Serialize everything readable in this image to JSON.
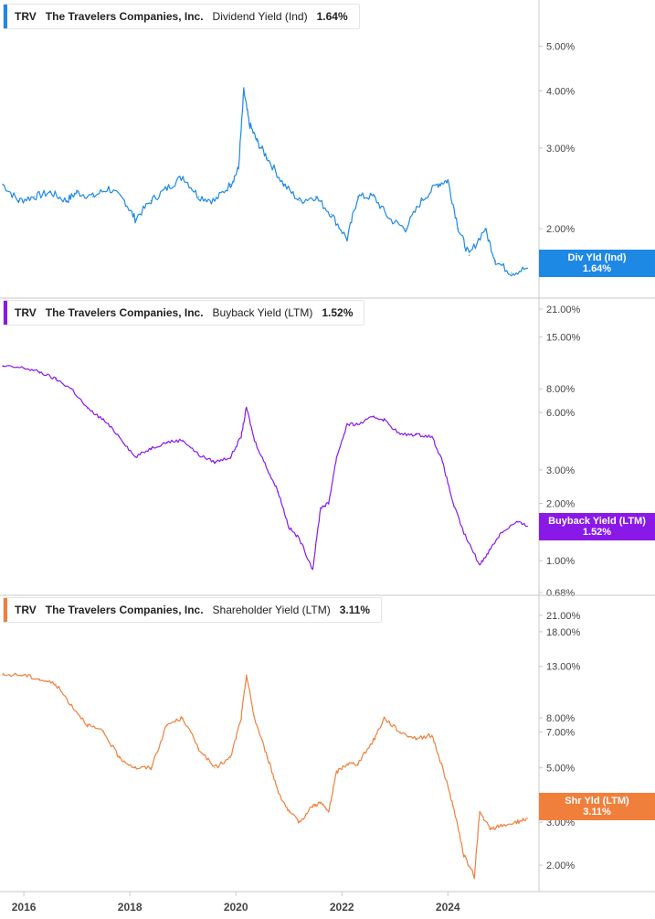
{
  "panels": [
    {
      "ticker": "TRV",
      "company": "The Travelers Companies, Inc.",
      "metric": "Dividend Yield (Ind)",
      "value": "1.64%",
      "badge_label": "Div Yld (Ind)",
      "badge_value": "1.64%",
      "color": "#1e88e5",
      "tick_labels": [
        "5.00%",
        "4.00%",
        "3.00%",
        "2.00%"
      ]
    },
    {
      "ticker": "TRV",
      "company": "The Travelers Companies, Inc.",
      "metric": "Buyback Yield (LTM)",
      "value": "1.52%",
      "badge_label": "Buyback Yield (LTM)",
      "badge_value": "1.52%",
      "color": "#8a19e8",
      "tick_labels": [
        "21.00%",
        "15.00%",
        "8.00%",
        "6.00%",
        "3.00%",
        "2.00%",
        "1.00%",
        "0.68%"
      ]
    },
    {
      "ticker": "TRV",
      "company": "The Travelers Companies, Inc.",
      "metric": "Shareholder Yield (LTM)",
      "value": "3.11%",
      "badge_label": "Shr Yld (LTM)",
      "badge_value": "3.11%",
      "color": "#f07f3c",
      "tick_labels": [
        "21.00%",
        "18.00%",
        "13.00%",
        "8.00%",
        "7.00%",
        "5.00%",
        "3.00%",
        "2.00%"
      ]
    }
  ],
  "x_axis": {
    "tick_labels": [
      "2016",
      "2018",
      "2020",
      "2022",
      "2024"
    ]
  },
  "chart_data": [
    {
      "type": "line",
      "y_scale": "log",
      "ylim": [
        1.45,
        5.5
      ],
      "y_ticks": [
        5,
        4,
        3,
        2
      ],
      "x_ticks": [
        2016,
        2018,
        2020,
        2022,
        2024
      ],
      "series": [
        {
          "name": "Div Yld (Ind)",
          "color": "#1e88e5",
          "x": [
            2015.6,
            2015.9,
            2016.2,
            2016.5,
            2016.8,
            2017.0,
            2017.3,
            2017.6,
            2017.9,
            2018.1,
            2018.4,
            2018.7,
            2019.0,
            2019.3,
            2019.6,
            2019.9,
            2020.05,
            2020.15,
            2020.25,
            2020.4,
            2020.6,
            2020.9,
            2021.2,
            2021.5,
            2021.8,
            2022.1,
            2022.3,
            2022.6,
            2022.9,
            2023.2,
            2023.5,
            2023.8,
            2024.0,
            2024.2,
            2024.4,
            2024.7,
            2024.9,
            2025.2,
            2025.5
          ],
          "y": [
            2.5,
            2.3,
            2.35,
            2.4,
            2.3,
            2.4,
            2.35,
            2.45,
            2.3,
            2.1,
            2.3,
            2.45,
            2.6,
            2.35,
            2.3,
            2.5,
            2.7,
            4.0,
            3.4,
            3.1,
            2.85,
            2.5,
            2.3,
            2.35,
            2.15,
            1.9,
            2.35,
            2.35,
            2.1,
            2.0,
            2.3,
            2.5,
            2.55,
            2.0,
            1.75,
            2.0,
            1.7,
            1.6,
            1.64
          ]
        }
      ]
    },
    {
      "type": "line",
      "y_scale": "log",
      "ylim": [
        0.68,
        21
      ],
      "y_ticks": [
        21,
        15,
        8,
        6,
        3,
        2,
        1,
        0.68
      ],
      "x_ticks": [
        2016,
        2018,
        2020,
        2022,
        2024
      ],
      "series": [
        {
          "name": "Buyback Yield (LTM)",
          "color": "#8a19e8",
          "x": [
            2015.6,
            2016.0,
            2016.3,
            2016.6,
            2016.9,
            2017.2,
            2017.5,
            2017.8,
            2018.1,
            2018.4,
            2018.7,
            2019.0,
            2019.3,
            2019.6,
            2019.9,
            2020.1,
            2020.2,
            2020.35,
            2020.6,
            2020.8,
            2021.0,
            2021.2,
            2021.45,
            2021.6,
            2021.75,
            2021.9,
            2022.1,
            2022.3,
            2022.6,
            2022.8,
            2023.1,
            2023.4,
            2023.7,
            2023.9,
            2024.1,
            2024.3,
            2024.6,
            2024.8,
            2025.0,
            2025.3,
            2025.5
          ],
          "y": [
            10.5,
            10.3,
            9.8,
            9.0,
            8.0,
            6.3,
            5.5,
            4.5,
            3.5,
            3.9,
            4.2,
            4.3,
            3.6,
            3.3,
            3.5,
            4.5,
            6.4,
            4.3,
            3.0,
            2.3,
            1.5,
            1.3,
            0.9,
            1.9,
            2.0,
            3.5,
            5.2,
            5.2,
            5.7,
            5.5,
            4.6,
            4.6,
            4.5,
            3.3,
            2.0,
            1.4,
            0.95,
            1.15,
            1.4,
            1.6,
            1.52
          ]
        }
      ]
    },
    {
      "type": "line",
      "y_scale": "log",
      "ylim": [
        1.7,
        21
      ],
      "y_ticks": [
        21,
        18,
        13,
        8,
        7,
        5,
        3,
        2
      ],
      "x_ticks": [
        2016,
        2018,
        2020,
        2022,
        2024
      ],
      "series": [
        {
          "name": "Shr Yld (LTM)",
          "color": "#f07f3c",
          "x": [
            2015.6,
            2016.0,
            2016.3,
            2016.6,
            2016.9,
            2017.2,
            2017.5,
            2017.8,
            2018.1,
            2018.4,
            2018.7,
            2019.0,
            2019.3,
            2019.6,
            2019.9,
            2020.1,
            2020.2,
            2020.35,
            2020.6,
            2020.8,
            2021.0,
            2021.2,
            2021.45,
            2021.6,
            2021.75,
            2021.9,
            2022.1,
            2022.3,
            2022.6,
            2022.8,
            2023.1,
            2023.4,
            2023.7,
            2023.9,
            2024.1,
            2024.3,
            2024.5,
            2024.6,
            2024.8,
            2025.0,
            2025.3,
            2025.5
          ],
          "y": [
            12.0,
            12.0,
            11.5,
            11.0,
            9.0,
            7.5,
            7.0,
            5.5,
            5.0,
            5.0,
            7.5,
            8.0,
            6.0,
            5.0,
            5.5,
            8.0,
            12.0,
            8.0,
            5.5,
            4.0,
            3.3,
            3.0,
            3.5,
            3.6,
            3.3,
            4.8,
            5.2,
            5.2,
            6.5,
            8.0,
            7.0,
            6.6,
            6.8,
            5.0,
            3.5,
            2.2,
            1.8,
            3.3,
            2.8,
            2.9,
            3.0,
            3.11
          ]
        }
      ]
    }
  ]
}
